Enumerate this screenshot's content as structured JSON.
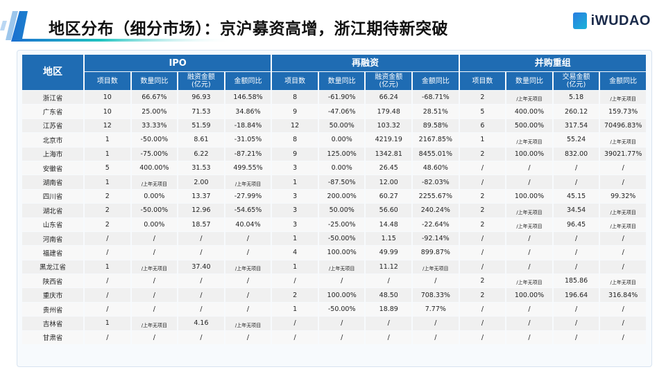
{
  "title": "地区分布（细分市场）：京沪募资高增，浙江期待新突破",
  "logo": "iWUDAO",
  "colors": {
    "header_blue": "#1f6cb3",
    "row_bg": "#f0f0f0"
  },
  "table": {
    "region_header": "地区",
    "groups": [
      "IPO",
      "再融资",
      "并购重组"
    ],
    "subheaders": [
      [
        "项目数",
        "数量同比",
        "融资金额\n(亿元)",
        "金额同比"
      ],
      [
        "项目数",
        "数量同比",
        "融资金额\n(亿元)",
        "金额同比"
      ],
      [
        "项目数",
        "数量同比",
        "交易金额\n(亿元)",
        "金额同比"
      ]
    ],
    "rows": [
      [
        "浙江省",
        "10",
        "66.67%",
        "96.93",
        "146.58%",
        "8",
        "-61.90%",
        "66.24",
        "-68.71%",
        "2",
        "/上年无项目",
        "5.18",
        "/上年无项目"
      ],
      [
        "广东省",
        "10",
        "25.00%",
        "71.53",
        "34.86%",
        "9",
        "-47.06%",
        "179.48",
        "28.51%",
        "5",
        "400.00%",
        "260.12",
        "159.73%"
      ],
      [
        "江苏省",
        "12",
        "33.33%",
        "51.59",
        "-18.84%",
        "12",
        "50.00%",
        "103.32",
        "89.58%",
        "6",
        "500.00%",
        "317.54",
        "70496.83%"
      ],
      [
        "北京市",
        "1",
        "-50.00%",
        "8.61",
        "-31.05%",
        "8",
        "0.00%",
        "4219.19",
        "2167.85%",
        "1",
        "/上年无项目",
        "55.24",
        "/上年无项目"
      ],
      [
        "上海市",
        "1",
        "-75.00%",
        "6.22",
        "-87.21%",
        "9",
        "125.00%",
        "1342.81",
        "8455.01%",
        "2",
        "100.00%",
        "832.00",
        "39021.77%"
      ],
      [
        "安徽省",
        "5",
        "400.00%",
        "31.53",
        "499.55%",
        "3",
        "0.00%",
        "26.45",
        "48.60%",
        "/",
        "/",
        "/",
        "/"
      ],
      [
        "湖南省",
        "1",
        "/上年无项目",
        "2.00",
        "/上年无项目",
        "1",
        "-87.50%",
        "12.00",
        "-82.03%",
        "/",
        "/",
        "/",
        "/"
      ],
      [
        "四川省",
        "2",
        "0.00%",
        "13.37",
        "-27.99%",
        "3",
        "200.00%",
        "60.27",
        "2255.67%",
        "2",
        "100.00%",
        "45.15",
        "99.32%"
      ],
      [
        "湖北省",
        "2",
        "-50.00%",
        "12.96",
        "-54.65%",
        "3",
        "50.00%",
        "56.60",
        "240.24%",
        "2",
        "/上年无项目",
        "34.54",
        "/上年无项目"
      ],
      [
        "山东省",
        "2",
        "0.00%",
        "18.57",
        "40.04%",
        "3",
        "-25.00%",
        "14.48",
        "-22.64%",
        "2",
        "/上年无项目",
        "96.45",
        "/上年无项目"
      ],
      [
        "河南省",
        "/",
        "/",
        "/",
        "/",
        "1",
        "-50.00%",
        "1.15",
        "-92.14%",
        "/",
        "/",
        "/",
        "/"
      ],
      [
        "福建省",
        "/",
        "/",
        "/",
        "/",
        "4",
        "100.00%",
        "49.99",
        "899.87%",
        "/",
        "/",
        "/",
        "/"
      ],
      [
        "黑龙江省",
        "1",
        "/上年无项目",
        "37.40",
        "/上年无项目",
        "1",
        "/上年无项目",
        "11.12",
        "/上年无项目",
        "/",
        "/",
        "/",
        "/"
      ],
      [
        "陕西省",
        "/",
        "/",
        "/",
        "/",
        "/",
        "/",
        "/",
        "/",
        "2",
        "/上年无项目",
        "185.86",
        "/上年无项目"
      ],
      [
        "重庆市",
        "/",
        "/",
        "/",
        "/",
        "2",
        "100.00%",
        "48.50",
        "708.33%",
        "2",
        "100.00%",
        "196.64",
        "316.84%"
      ],
      [
        "贵州省",
        "/",
        "/",
        "/",
        "/",
        "1",
        "-50.00%",
        "18.89",
        "7.77%",
        "/",
        "/",
        "/",
        "/"
      ],
      [
        "吉林省",
        "1",
        "/上年无项目",
        "4.16",
        "/上年无项目",
        "/",
        "/",
        "/",
        "/",
        "/",
        "/",
        "/",
        "/"
      ],
      [
        "甘肃省",
        "/",
        "/",
        "/",
        "/",
        "/",
        "/",
        "/",
        "/",
        "/",
        "/",
        "/",
        "/"
      ]
    ]
  }
}
